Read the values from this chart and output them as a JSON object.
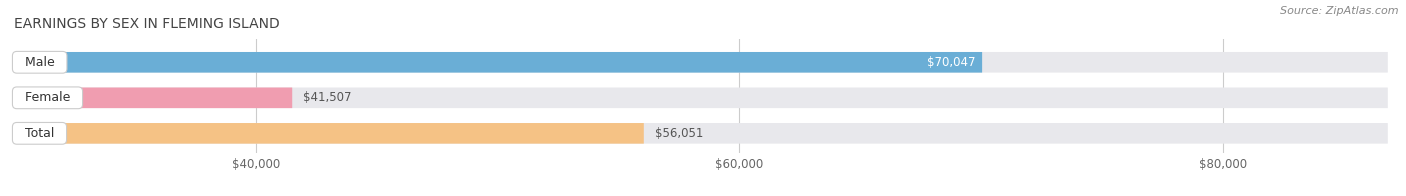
{
  "title": "EARNINGS BY SEX IN FLEMING ISLAND",
  "source": "Source: ZipAtlas.com",
  "categories": [
    "Male",
    "Female",
    "Total"
  ],
  "values": [
    70047,
    41507,
    56051
  ],
  "bar_colors": [
    "#6aaed6",
    "#f09db0",
    "#f5c285"
  ],
  "bar_bg_color": "#e8e8ec",
  "label_inside": [
    true,
    false,
    false
  ],
  "value_label_colors": [
    "#ffffff",
    "#555555",
    "#555555"
  ],
  "xlim_min": 30000,
  "xlim_max": 87000,
  "xticks": [
    40000,
    60000,
    80000
  ],
  "xtick_labels": [
    "$40,000",
    "$60,000",
    "$80,000"
  ],
  "figsize": [
    14.06,
    1.96
  ],
  "dpi": 100,
  "title_fontsize": 10,
  "bar_label_fontsize": 8.5,
  "category_fontsize": 9,
  "axis_fontsize": 8.5,
  "source_fontsize": 8,
  "bg_color": "#ffffff",
  "title_color": "#444444",
  "source_color": "#888888"
}
